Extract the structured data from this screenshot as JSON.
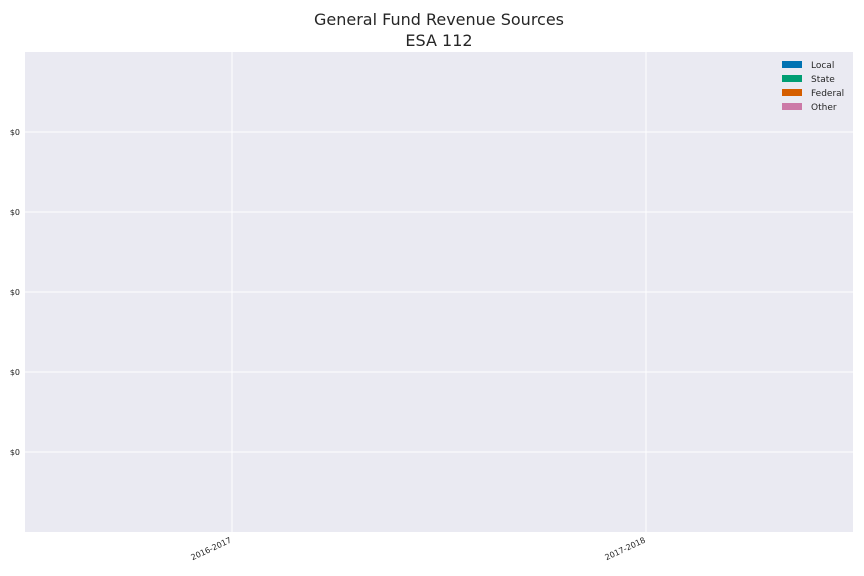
{
  "chart_data": {
    "type": "bar",
    "stacked": true,
    "title": "General Fund Revenue Sources",
    "subtitle": "ESA 112",
    "xlabel": "",
    "ylabel": "",
    "categories": [
      "2016-2017",
      "2017-2018"
    ],
    "series": [
      {
        "name": "Local",
        "color": "#0072b2",
        "values": [
          0,
          0
        ]
      },
      {
        "name": "State",
        "color": "#009e73",
        "values": [
          0,
          0
        ]
      },
      {
        "name": "Federal",
        "color": "#d55e00",
        "values": [
          0,
          0
        ]
      },
      {
        "name": "Other",
        "color": "#cc79a7",
        "values": [
          0,
          0
        ]
      }
    ],
    "ylim": [
      -0.06,
      0.06
    ],
    "yticks": [
      -0.04,
      -0.02,
      0,
      0.02,
      0.04
    ],
    "ytick_labels": [
      "$0",
      "$0",
      "$0",
      "$0",
      "$0"
    ],
    "grid": true,
    "legend_position": "top-right",
    "background": "#eaeaf2"
  }
}
